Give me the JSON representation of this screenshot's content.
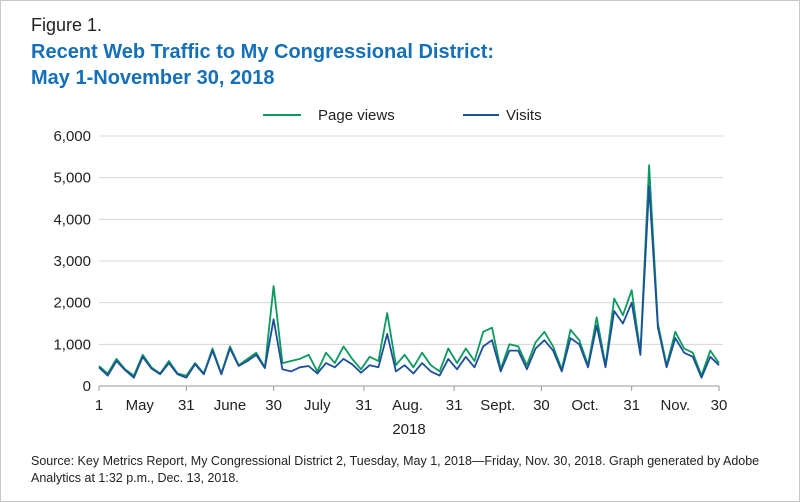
{
  "figure_label": "Figure 1.",
  "title_line1": "Recent Web Traffic to My Congressional District:",
  "title_line2": "May 1-November 30, 2018",
  "source": "Source: Key Metrics Report, My Congressional District 2, Tuesday, May 1, 2018—Friday, Nov. 30, 2018. Graph generated by Adobe Analytics at 1:32 p.m., Dec. 13, 2018.",
  "chart_data": {
    "type": "line",
    "title": "Recent Web Traffic to My Congressional District: May 1-November 30, 2018",
    "xlabel": "2018",
    "ylabel": "",
    "ylim": [
      0,
      6000
    ],
    "xlim": [
      "2018-05-01",
      "2018-11-30"
    ],
    "yticks": [
      "0",
      "1,000",
      "2,000",
      "3,000",
      "4,000",
      "5,000",
      "6,000"
    ],
    "yticks_values": [
      0,
      1000,
      2000,
      3000,
      4000,
      5000,
      6000
    ],
    "xtick_marks": [
      "2018-05-01",
      "2018-05-31",
      "2018-06-30",
      "2018-07-31",
      "2018-08-31",
      "2018-09-30",
      "2018-10-31",
      "2018-11-30"
    ],
    "xtick_labels": [
      {
        "label": "1",
        "date": "2018-05-01"
      },
      {
        "label": "May",
        "date": "2018-05-15"
      },
      {
        "label": "31",
        "date": "2018-05-31"
      },
      {
        "label": "June",
        "date": "2018-06-15"
      },
      {
        "label": "30",
        "date": "2018-06-30"
      },
      {
        "label": "July",
        "date": "2018-07-15"
      },
      {
        "label": "31",
        "date": "2018-07-31"
      },
      {
        "label": "Aug.",
        "date": "2018-08-15"
      },
      {
        "label": "31",
        "date": "2018-08-31"
      },
      {
        "label": "Sept.",
        "date": "2018-09-15"
      },
      {
        "label": "30",
        "date": "2018-09-30"
      },
      {
        "label": "Oct.",
        "date": "2018-10-15"
      },
      {
        "label": "31",
        "date": "2018-10-31"
      },
      {
        "label": "Nov.",
        "date": "2018-11-15"
      },
      {
        "label": "30",
        "date": "2018-11-30"
      }
    ],
    "grid": "horizontal",
    "legend_placement": "top",
    "x_step_days": 3,
    "x_start": "2018-05-01",
    "series": [
      {
        "name": "Page views",
        "color": "#0b9a5e",
        "values": [
          480,
          300,
          650,
          400,
          250,
          750,
          450,
          300,
          600,
          300,
          250,
          550,
          300,
          900,
          300,
          950,
          500,
          650,
          800,
          450,
          2400,
          550,
          600,
          650,
          750,
          350,
          800,
          550,
          950,
          650,
          400,
          700,
          600,
          1750,
          500,
          750,
          450,
          800,
          500,
          350,
          900,
          550,
          900,
          600,
          1300,
          1400,
          400,
          1000,
          950,
          500,
          1050,
          1300,
          950,
          400,
          1350,
          1100,
          500,
          1650,
          500,
          2100,
          1700,
          2300,
          800,
          5300,
          1500,
          500,
          1300,
          900,
          800,
          250,
          850,
          550
        ]
      },
      {
        "name": "Visits",
        "color": "#1d4f9a",
        "values": [
          450,
          250,
          600,
          380,
          200,
          700,
          420,
          280,
          550,
          280,
          200,
          520,
          280,
          850,
          280,
          900,
          480,
          600,
          750,
          430,
          1600,
          400,
          350,
          450,
          480,
          300,
          550,
          450,
          650,
          520,
          320,
          500,
          450,
          1250,
          350,
          500,
          300,
          550,
          350,
          250,
          650,
          400,
          700,
          450,
          950,
          1100,
          350,
          850,
          850,
          400,
          900,
          1100,
          850,
          350,
          1150,
          1000,
          450,
          1450,
          450,
          1800,
          1500,
          2000,
          750,
          4800,
          1400,
          450,
          1150,
          800,
          700,
          200,
          700,
          500
        ]
      }
    ]
  }
}
